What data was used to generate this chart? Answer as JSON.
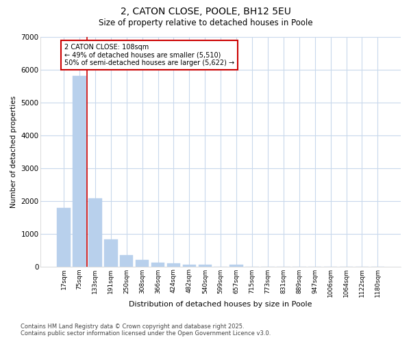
{
  "title_line1": "2, CATON CLOSE, POOLE, BH12 5EU",
  "title_line2": "Size of property relative to detached houses in Poole",
  "xlabel": "Distribution of detached houses by size in Poole",
  "ylabel": "Number of detached properties",
  "categories": [
    "17sqm",
    "75sqm",
    "133sqm",
    "191sqm",
    "250sqm",
    "308sqm",
    "366sqm",
    "424sqm",
    "482sqm",
    "540sqm",
    "599sqm",
    "657sqm",
    "715sqm",
    "773sqm",
    "831sqm",
    "889sqm",
    "947sqm",
    "1006sqm",
    "1064sqm",
    "1122sqm",
    "1180sqm"
  ],
  "values": [
    1780,
    5820,
    2080,
    820,
    340,
    200,
    110,
    90,
    60,
    60,
    0,
    60,
    0,
    0,
    0,
    0,
    0,
    0,
    0,
    0,
    0
  ],
  "bar_color": "#b8d0ec",
  "bar_edge_color": "#b8d0ec",
  "vline_color": "#cc0000",
  "annotation_text": "2 CATON CLOSE: 108sqm\n← 49% of detached houses are smaller (5,510)\n50% of semi-detached houses are larger (5,622) →",
  "annotation_box_color": "#cc0000",
  "ylim": [
    0,
    7000
  ],
  "yticks": [
    0,
    1000,
    2000,
    3000,
    4000,
    5000,
    6000,
    7000
  ],
  "fig_background_color": "#ffffff",
  "plot_background_color": "#ffffff",
  "grid_color": "#c8d8ec",
  "footer_text": "Contains HM Land Registry data © Crown copyright and database right 2025.\nContains public sector information licensed under the Open Government Licence v3.0.",
  "figsize": [
    6.0,
    5.0
  ],
  "dpi": 100
}
